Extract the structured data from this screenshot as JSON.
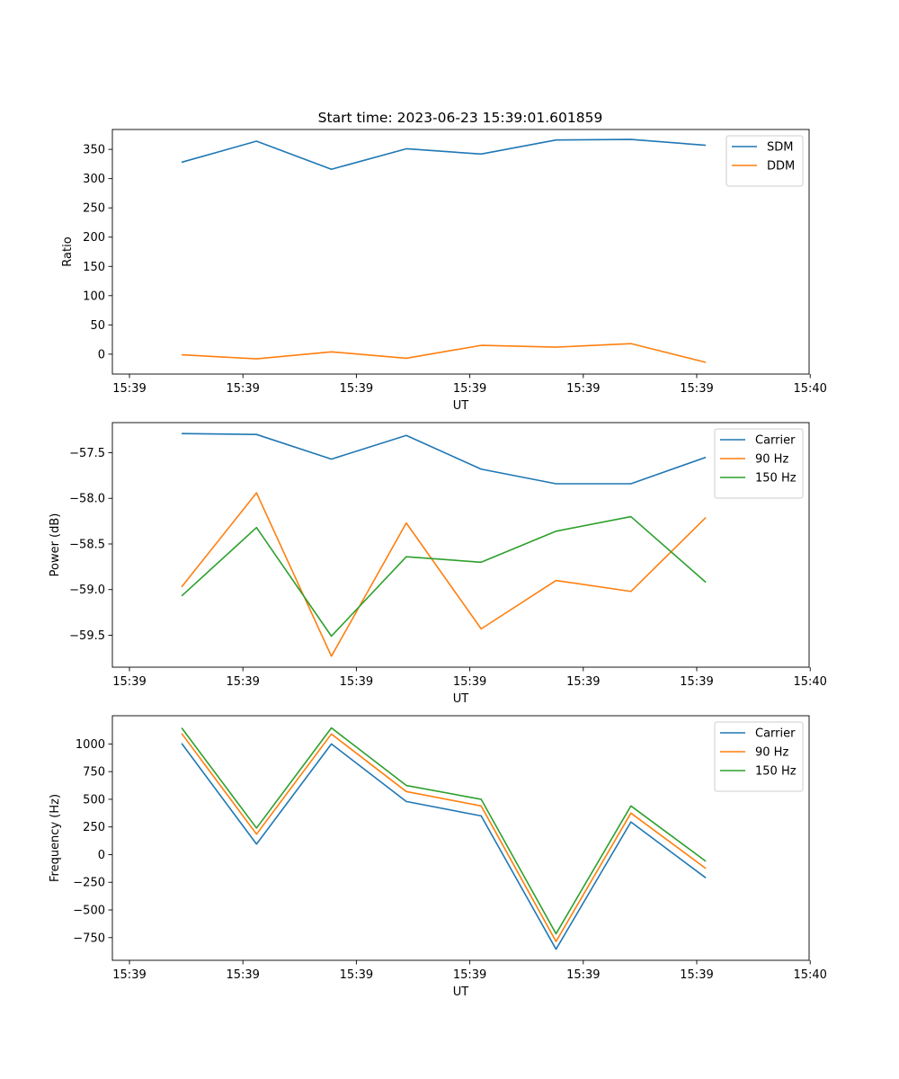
{
  "figure_title": "Start time: 2023-06-23 15:39:01.601859",
  "colors": {
    "blue": "#1f77b4",
    "orange": "#ff7f0e",
    "green": "#2ca02c"
  },
  "chart_data": [
    {
      "type": "line",
      "title": "Start time: 2023-06-23 15:39:01.601859",
      "xlabel": "UT",
      "ylabel": "Ratio",
      "x_tick_labels": [
        "15:39",
        "15:39",
        "15:39",
        "15:39",
        "15:39",
        "15:39",
        "15:40"
      ],
      "ylim": [
        -34,
        384
      ],
      "y_ticks": [
        0,
        50,
        100,
        150,
        200,
        250,
        300,
        350
      ],
      "legend": "top-right",
      "series": [
        {
          "name": "SDM",
          "color": "#1f77b4",
          "values": [
            328,
            364,
            316,
            351,
            342,
            366,
            367,
            357
          ]
        },
        {
          "name": "DDM",
          "color": "#ff7f0e",
          "values": [
            -1,
            -8,
            4,
            -7,
            15,
            12,
            18,
            -14
          ]
        }
      ]
    },
    {
      "type": "line",
      "xlabel": "UT",
      "ylabel": "Power (dB)",
      "x_tick_labels": [
        "15:39",
        "15:39",
        "15:39",
        "15:39",
        "15:39",
        "15:39",
        "15:40"
      ],
      "ylim": [
        -59.85,
        -57.17
      ],
      "y_ticks": [
        -59.5,
        -59.0,
        -58.5,
        -58.0,
        -57.5
      ],
      "y_tick_labels": [
        "−59.5",
        "−59.0",
        "−58.5",
        "−58.0",
        "−57.5"
      ],
      "legend": "top-right",
      "series": [
        {
          "name": "Carrier",
          "color": "#1f77b4",
          "values": [
            -57.29,
            -57.3,
            -57.57,
            -57.31,
            -57.68,
            -57.84,
            -57.84,
            -57.55
          ]
        },
        {
          "name": "90 Hz",
          "color": "#ff7f0e",
          "values": [
            -58.97,
            -57.94,
            -59.73,
            -58.27,
            -59.43,
            -58.9,
            -59.02,
            -58.21
          ]
        },
        {
          "name": "150 Hz",
          "color": "#2ca02c",
          "values": [
            -59.07,
            -58.32,
            -59.51,
            -58.64,
            -58.7,
            -58.36,
            -58.2,
            -58.92
          ]
        }
      ]
    },
    {
      "type": "line",
      "xlabel": "UT",
      "ylabel": "Frequency (Hz)",
      "x_tick_labels": [
        "15:39",
        "15:39",
        "15:39",
        "15:39",
        "15:39",
        "15:39",
        "15:40"
      ],
      "ylim": [
        -955,
        1255
      ],
      "y_ticks": [
        -750,
        -500,
        -250,
        0,
        250,
        500,
        750,
        1000
      ],
      "y_tick_labels": [
        "−750",
        "−500",
        "−250",
        "0",
        "250",
        "500",
        "750",
        "1000"
      ],
      "legend": "top-right",
      "series": [
        {
          "name": "Carrier",
          "color": "#1f77b4",
          "values": [
            1005,
            95,
            1000,
            480,
            350,
            -855,
            295,
            -210
          ]
        },
        {
          "name": "90 Hz",
          "color": "#ff7f0e",
          "values": [
            1095,
            185,
            1090,
            570,
            440,
            -785,
            375,
            -125
          ]
        },
        {
          "name": "150 Hz",
          "color": "#2ca02c",
          "values": [
            1145,
            240,
            1145,
            625,
            500,
            -715,
            440,
            -60
          ]
        }
      ]
    }
  ]
}
